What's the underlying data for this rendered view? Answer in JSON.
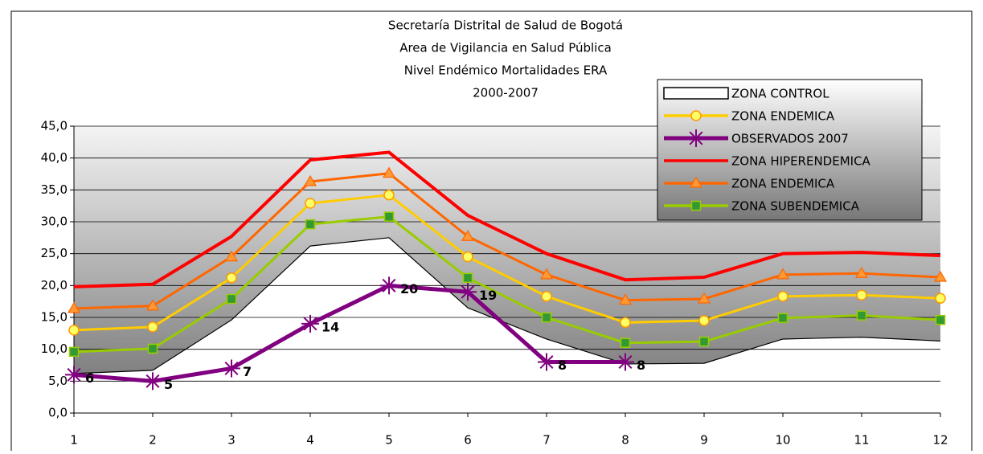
{
  "chart_data": {
    "type": "line",
    "title": [
      "Secretaría Distrital de Salud de Bogotá",
      "Area de Vigilancia en Salud Pública",
      "Nivel Endémico Mortalidades ERA",
      "2000-2007"
    ],
    "categories": [
      "1",
      "2",
      "3",
      "4",
      "5",
      "6",
      "7",
      "8",
      "9",
      "10",
      "11",
      "12"
    ],
    "ylim": [
      0,
      45
    ],
    "yticks": [
      {
        "value": 0,
        "label": "0,0"
      },
      {
        "value": 5,
        "label": "5,0"
      },
      {
        "value": 10,
        "label": "10,0"
      },
      {
        "value": 15,
        "label": "15,0"
      },
      {
        "value": 20,
        "label": "20,0"
      },
      {
        "value": 25,
        "label": "25,0"
      },
      {
        "value": 30,
        "label": "30,0"
      },
      {
        "value": 35,
        "label": "35,0"
      },
      {
        "value": 40,
        "label": "40,0"
      },
      {
        "value": 45,
        "label": "45,0"
      }
    ],
    "grid": true,
    "legend": "top-right",
    "series": [
      {
        "name": "ZONA CONTROL",
        "color": "#000000",
        "area": true,
        "marker": "none",
        "values": [
          6.2,
          6.7,
          14.6,
          26.2,
          27.5,
          16.5,
          11.6,
          7.7,
          7.8,
          11.6,
          11.9,
          11.3
        ]
      },
      {
        "name": "ZONA ENDEMICA",
        "color": "#ffcc00",
        "marker": "circle",
        "values": [
          13.0,
          13.5,
          21.2,
          32.9,
          34.2,
          24.5,
          18.3,
          14.2,
          14.5,
          18.3,
          18.5,
          18.0
        ]
      },
      {
        "name": "OBSERVADOS 2007",
        "color": "#800080",
        "marker": "star",
        "data_labels": true,
        "values": [
          6,
          5,
          7,
          14,
          20,
          19,
          8,
          8,
          null,
          null,
          null,
          null
        ]
      },
      {
        "name": "ZONA HIPERENDEMICA",
        "color": "#ff0000",
        "marker": "none",
        "values": [
          19.8,
          20.2,
          27.7,
          39.7,
          40.9,
          31.0,
          25.0,
          20.9,
          21.3,
          25.0,
          25.2,
          24.7
        ]
      },
      {
        "name": "ZONA ENDEMICA",
        "color": "#ff6600",
        "marker": "triangle",
        "values": [
          16.4,
          16.8,
          24.5,
          36.3,
          37.6,
          27.7,
          21.7,
          17.7,
          17.9,
          21.7,
          21.9,
          21.3
        ]
      },
      {
        "name": "ZONA SUBENDEMICA",
        "color": "#99cc00",
        "marker": "square",
        "values": [
          9.6,
          10.1,
          17.9,
          29.6,
          30.8,
          21.2,
          15.0,
          11.0,
          11.2,
          14.9,
          15.3,
          14.6
        ]
      }
    ]
  }
}
